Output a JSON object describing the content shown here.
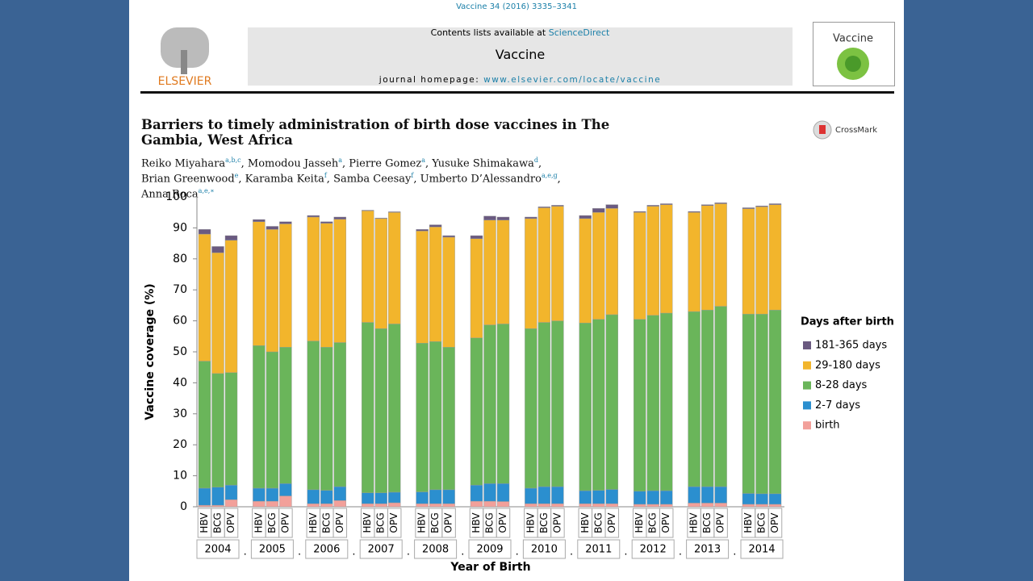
{
  "journal_ref": "Vaccine 34 (2016) 3335–3341",
  "masthead": {
    "contents": "Contents lists available at ",
    "contents_link": "ScienceDirect",
    "journal": "Vaccine",
    "homepage": "journal homepage: ",
    "homepage_link": "www.elsevier.com/locate/vaccine",
    "publisher": "ELSEVIER",
    "cover_title": "Vaccine"
  },
  "crossmark": "CrossMark",
  "article": {
    "title_lines": [
      "Barriers to timely administration of birth dose vaccines in The",
      "Gambia, West Africa"
    ],
    "separator": ",",
    "author_lines": [
      [
        {
          "name": "Reiko Miyahara",
          "aff": "a,b,c"
        },
        {
          "name": "Momodou Jasseh",
          "aff": "a"
        },
        {
          "name": "Pierre Gomez",
          "aff": "a"
        },
        {
          "name": "Yusuke Shimakawa",
          "aff": "d"
        }
      ],
      [
        {
          "name": "Brian Greenwood",
          "aff": "e"
        },
        {
          "name": "Karamba Keita",
          "aff": "f"
        },
        {
          "name": "Samba Ceesay",
          "aff": "f"
        },
        {
          "name": "Umberto D’Alessandro",
          "aff": "a,e,g"
        }
      ],
      [
        {
          "name": "Anna Roca",
          "aff": "a,e,∗"
        }
      ]
    ]
  },
  "chart_data": {
    "type": "stacked_bar",
    "ylabel": "Vaccine coverage (%)",
    "xlabel": "Year of Birth",
    "legend_title": "Days after birth",
    "legend": "right",
    "ylim": [
      0,
      100
    ],
    "yticks": [
      0,
      10,
      20,
      30,
      40,
      50,
      60,
      70,
      80,
      90,
      100
    ],
    "groups": [
      "2004",
      "2005",
      "2006",
      "2007",
      "2008",
      "2009",
      "2010",
      "2011",
      "2012",
      "2013",
      "2014"
    ],
    "group_separator": ".",
    "categories": [
      "HBV",
      "BCG",
      "OPV",
      "HBV",
      "BCG",
      "OPV",
      "HBV",
      "BCG",
      "OPV",
      "HBV",
      "BCG",
      "OPV",
      "HBV",
      "BCG",
      "OPV",
      "HBV",
      "BCG",
      "OPV",
      "HBV",
      "BCG",
      "OPV",
      "HBV",
      "BCG",
      "OPV",
      "HBV",
      "BCG",
      "OPV",
      "HBV",
      "BCG",
      "OPV",
      "HBV",
      "BCG",
      "OPV"
    ],
    "series": [
      {
        "name": "birth",
        "color": "#f2a09a",
        "values": [
          0.5,
          0.5,
          2.3,
          1.8,
          1.8,
          3.5,
          1,
          1,
          2,
          1,
          1,
          1.3,
          1,
          1,
          1,
          1.8,
          1.8,
          1.7,
          1,
          1,
          1,
          1,
          1,
          1,
          0.8,
          0.8,
          0.8,
          1.2,
          1.2,
          1.2,
          0.8,
          0.8,
          0.8
        ]
      },
      {
        "name": "2-7 days",
        "color": "#2b8fcf",
        "values": [
          5.5,
          5.8,
          4.7,
          4.2,
          4.2,
          4,
          4.5,
          4.3,
          4.5,
          3.5,
          3.5,
          3.4,
          3.8,
          4.5,
          4.5,
          5.2,
          5.7,
          5.8,
          5,
          5.5,
          5.5,
          4.2,
          4.3,
          4.6,
          4.2,
          4.4,
          4.4,
          5.3,
          5.3,
          5.3,
          3.5,
          3.4,
          3.4
        ]
      },
      {
        "name": "8-28 days",
        "color": "#6ab55a",
        "values": [
          41,
          36.7,
          36.3,
          46,
          44,
          44,
          48,
          46.2,
          46.5,
          55,
          53,
          54.3,
          48,
          47.8,
          46,
          47.5,
          51.2,
          51.5,
          51.5,
          53,
          53.5,
          54.1,
          55.2,
          56.4,
          55.5,
          56.6,
          57.3,
          56.5,
          57,
          58.2,
          57.9,
          58,
          59.3
        ]
      },
      {
        "name": "29-180 days",
        "color": "#f2b52c",
        "values": [
          41,
          39,
          42.7,
          40,
          39.5,
          39.8,
          40,
          40,
          39.8,
          36,
          35.5,
          36,
          36.2,
          37,
          35.5,
          32,
          33.8,
          33.5,
          35.5,
          37,
          37,
          33.7,
          34.5,
          34.3,
          34.5,
          35.2,
          35,
          32,
          33.7,
          33.1,
          34,
          34.6,
          34
        ]
      },
      {
        "name": "181-365 days",
        "color": "#6a5a80",
        "values": [
          1.5,
          2,
          1.5,
          0.7,
          1,
          0.7,
          0.5,
          0.5,
          0.7,
          0.2,
          0.2,
          0.2,
          0.5,
          0.7,
          0.5,
          1,
          1.3,
          1,
          0.5,
          0.3,
          0.3,
          1,
          1.3,
          1.2,
          0.3,
          0.3,
          0.3,
          0.3,
          0.3,
          0.3,
          0.3,
          0.3,
          0.3
        ]
      }
    ]
  }
}
